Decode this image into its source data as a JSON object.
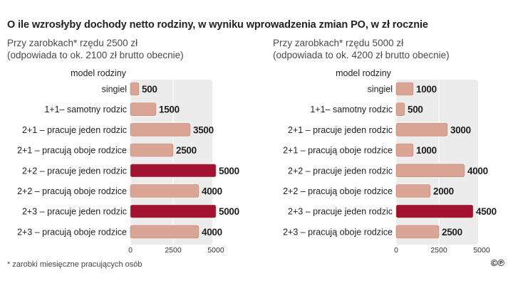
{
  "title": "O ile wzrosłyby dochody netto rodziny, w wyniku wprowadzenia zmian PO, w zł rocznie",
  "footnote": "* zarobki miesięczne pracujących osób",
  "brand": "©℗",
  "colors": {
    "normal_bar": "#dba595",
    "highlight_bar": "#a01230",
    "panel_bg": "#ececec"
  },
  "chart_data": [
    {
      "type": "bar",
      "subtitle_line1": "Przy zarobkach* rzędu 2500 zł",
      "subtitle_line2": "(odpowiada to ok. 2100 zł brutto obecnie)",
      "ylabel": "model rodziny",
      "categories": [
        "singiel",
        "1+1– samotny rodzic",
        "2+1 – pracuje jeden rodzic",
        "2+1 – pracują oboje rodzice",
        "2+2 – pracuje jeden rodzic",
        "2+2 – pracują oboje rodzice",
        "2+3 – pracuje jeden rodzic",
        "2+3 – pracują oboje rodzice"
      ],
      "values": [
        500,
        1500,
        3500,
        2500,
        5000,
        4000,
        5000,
        4000
      ],
      "value_labels": [
        "500",
        "1500",
        "3500",
        "2500",
        "5000",
        "4000",
        "5000",
        "4000"
      ],
      "highlight": [
        false,
        false,
        false,
        false,
        true,
        false,
        true,
        false
      ],
      "xlim": [
        0,
        5000
      ],
      "xticks": [
        "0",
        "2500",
        "5000"
      ]
    },
    {
      "type": "bar",
      "subtitle_line1": "Przy zarobkach* rzędu 5000 zł",
      "subtitle_line2": "(odpowiada to ok. 4200 zł brutto obecnie)",
      "ylabel": "model rodziny",
      "categories": [
        "singiel",
        "1+1– samotny rodzic",
        "2+1 – pracuje jeden rodzic",
        "2+1 – pracują oboje rodzice",
        "2+2 – pracuje jeden rodzic",
        "2+2 – pracują oboje rodzice",
        "2+3 – pracuje jeden rodzic",
        "2+3 – pracują oboje rodzice"
      ],
      "values": [
        1000,
        500,
        3000,
        1000,
        4000,
        2000,
        4500,
        2500
      ],
      "value_labels": [
        "1000",
        "500",
        "3000",
        "1000",
        "4000",
        "2000",
        "4500",
        "2500"
      ],
      "highlight": [
        false,
        false,
        false,
        false,
        false,
        false,
        true,
        false
      ],
      "xlim": [
        0,
        5000
      ],
      "xticks": [
        "0",
        "2500",
        "5000"
      ]
    }
  ]
}
